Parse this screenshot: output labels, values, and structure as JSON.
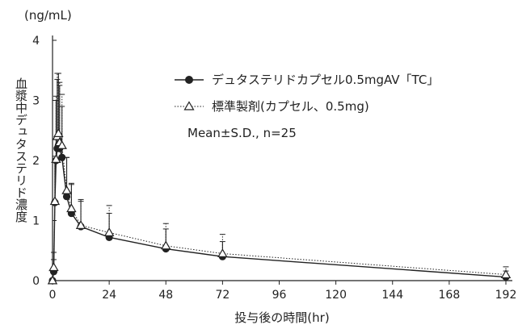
{
  "chart_data": {
    "type": "line",
    "unit_label": "(ng/mL)",
    "ylabel": "血漿中デュタステリド濃度",
    "xlabel": "投与後の時間(hr)",
    "xlim": [
      0,
      192
    ],
    "ylim": [
      0,
      4
    ],
    "xticks": [
      0,
      24,
      48,
      72,
      96,
      120,
      144,
      168,
      192
    ],
    "yticks": [
      0,
      1,
      2,
      3,
      4
    ],
    "legend_position": "top-right",
    "legend_note": "Mean±S.D., n=25",
    "series": [
      {
        "name": "デュタステリドカプセル0.5mgAV「TC」",
        "marker": "filled-circle",
        "line": "solid",
        "color": "#222222",
        "x": [
          0,
          0.5,
          1,
          1.5,
          2,
          2.5,
          3,
          4,
          6,
          8,
          12,
          24,
          48,
          72,
          192
        ],
        "y": [
          0,
          0.15,
          1.3,
          2.0,
          2.2,
          2.25,
          2.2,
          2.05,
          1.4,
          1.12,
          0.9,
          0.72,
          0.53,
          0.4,
          0.06
        ],
        "sd": [
          0,
          0.2,
          0.7,
          1.0,
          1.15,
          1.2,
          1.05,
          0.85,
          0.65,
          0.48,
          0.45,
          0.4,
          0.33,
          0.25,
          0.1
        ]
      },
      {
        "name": "標準製剤(カプセル、0.5mg)",
        "marker": "open-triangle",
        "line": "dotted",
        "color": "#222222",
        "x": [
          0,
          0.5,
          1,
          1.5,
          2,
          2.5,
          3,
          4,
          6,
          8,
          12,
          24,
          48,
          72,
          192
        ],
        "y": [
          0,
          0.22,
          1.32,
          2.02,
          2.4,
          2.45,
          2.3,
          2.25,
          1.5,
          1.2,
          0.92,
          0.8,
          0.58,
          0.45,
          0.1
        ],
        "sd": [
          0,
          0.25,
          0.75,
          1.05,
          1.05,
          1.0,
          1.0,
          0.85,
          0.55,
          0.42,
          0.4,
          0.45,
          0.37,
          0.32,
          0.13
        ]
      }
    ]
  }
}
